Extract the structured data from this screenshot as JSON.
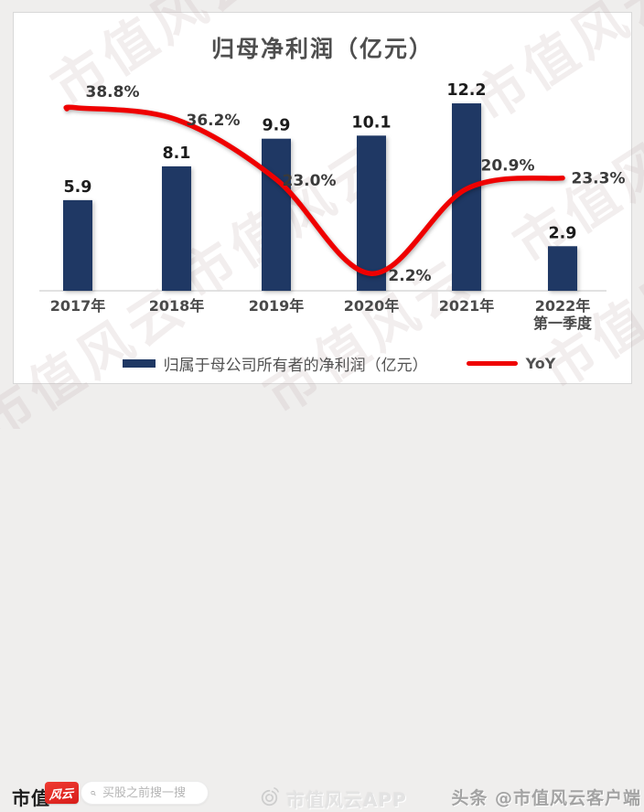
{
  "page": {
    "background": "#efeeed",
    "card_background": "#ffffff",
    "card_border": "#d8d8d8"
  },
  "watermark": {
    "text": "市值风云"
  },
  "chart_data": {
    "type": "bar",
    "title": "归母净利润（亿元）",
    "categories": [
      "2017年",
      "2018年",
      "2019年",
      "2020年",
      "2021年",
      "2022年|第一季度"
    ],
    "series": [
      {
        "name": "归属于母公司所有者的净利润（亿元）",
        "type": "bar",
        "values": [
          5.9,
          8.1,
          9.9,
          10.1,
          12.2,
          2.9
        ],
        "color": "#1f3864"
      },
      {
        "name": "YoY",
        "type": "line",
        "values": [
          38.8,
          36.2,
          23.0,
          2.2,
          20.9,
          23.3
        ],
        "unit": "%",
        "color": "#ef0000"
      }
    ],
    "bar_value_labels": [
      "5.9",
      "8.1",
      "9.9",
      "10.1",
      "12.2",
      "2.9"
    ],
    "yoy_value_labels": [
      "38.8%",
      "36.2%",
      "23.0%",
      "2.2%",
      "20.9%",
      "23.3%"
    ],
    "xlabel": "",
    "ylabel": "",
    "ylim_bar": [
      0,
      14
    ],
    "ylim_yoy_percent": [
      0,
      45
    ],
    "grid": "off",
    "legend_position": "bottom",
    "axis_color": "#d9d9d9",
    "value_label_color": "#1c1c1c",
    "yoy_label_color": "#3a3a3a",
    "xtick_color": "#4a4a4a"
  },
  "footer": {
    "brand_text": "市值",
    "brand_seal_text": "风云",
    "search_placeholder": "买股之前搜一搜",
    "app_watermark": "市值风云APP",
    "toutiao_handle": "头条 @市值风云客户端"
  }
}
